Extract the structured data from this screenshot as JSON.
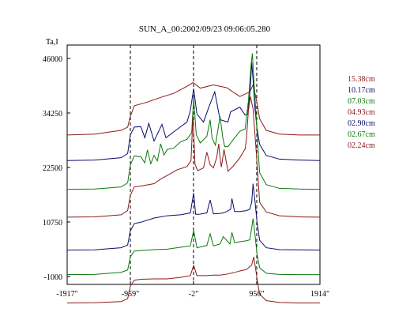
{
  "chart_data": {
    "type": "line",
    "title": "SUN_A_00:2002/09/23 09:06:05.280",
    "ylabel": "Ta,I",
    "xlabel": "",
    "xlim": [
      -1917,
      1914
    ],
    "ylim": [
      -1000,
      46000
    ],
    "yticks": [
      {
        "value": 46000,
        "label": "46000"
      },
      {
        "value": 34250,
        "label": "34250"
      },
      {
        "value": 22500,
        "label": "22500"
      },
      {
        "value": 10750,
        "label": "10750"
      },
      {
        "value": -1000,
        "label": "-1000"
      }
    ],
    "xticks": [
      {
        "value": -1917,
        "label": "-1917\""
      },
      {
        "value": -959,
        "label": "-959\""
      },
      {
        "value": -2,
        "label": "-2\""
      },
      {
        "value": 956,
        "label": "956\""
      },
      {
        "value": 1914,
        "label": "1914\""
      }
    ],
    "vlines": [
      -959,
      -2,
      956
    ],
    "grid": false,
    "legend_position": "right",
    "series": [
      {
        "name": "15.38cm",
        "color": "#8b1a1a",
        "x": [
          -1917,
          -1500,
          -1100,
          -1000,
          -960,
          -900,
          -700,
          -500,
          -300,
          -100,
          -10,
          100,
          300,
          500,
          700,
          850,
          900,
          950,
          1000,
          1100,
          1300,
          1600,
          1914
        ],
        "y": [
          29500,
          29700,
          30500,
          31200,
          33500,
          35800,
          36600,
          37600,
          38500,
          40000,
          40800,
          39600,
          40300,
          39700,
          37800,
          38800,
          40300,
          37200,
          33000,
          30500,
          29700,
          29500,
          29500
        ]
      },
      {
        "name": "10.17cm",
        "color": "#0b0b6e",
        "x": [
          -1917,
          -1500,
          -1100,
          -1000,
          -960,
          -900,
          -800,
          -740,
          -680,
          -600,
          -480,
          -420,
          -300,
          -100,
          -50,
          0,
          50,
          150,
          230,
          320,
          400,
          520,
          560,
          700,
          780,
          820,
          860,
          880,
          900,
          930,
          960,
          1000,
          1100,
          1300,
          1600,
          1914
        ],
        "y": [
          24000,
          24100,
          24600,
          25500,
          29500,
          31200,
          31300,
          28900,
          32000,
          28200,
          31800,
          28900,
          30200,
          32300,
          34800,
          39500,
          34000,
          32300,
          35500,
          38800,
          32800,
          32300,
          34500,
          35500,
          33800,
          34000,
          39800,
          45200,
          41500,
          35000,
          31000,
          27500,
          25100,
          24300,
          24100,
          24000
        ]
      },
      {
        "name": "07.03cm",
        "color": "#0b7a0b",
        "x": [
          -1917,
          -1500,
          -1100,
          -1000,
          -960,
          -900,
          -800,
          -740,
          -700,
          -650,
          -600,
          -550,
          -500,
          -450,
          -400,
          -300,
          -200,
          -100,
          -30,
          0,
          40,
          100,
          200,
          250,
          280,
          330,
          400,
          440,
          470,
          520,
          600,
          700,
          780,
          830,
          870,
          890,
          910,
          940,
          970,
          1000,
          1100,
          1300,
          1600,
          1914
        ],
        "y": [
          17800,
          17850,
          18300,
          19200,
          23000,
          25000,
          24800,
          23500,
          26300,
          23300,
          25100,
          23900,
          27600,
          25200,
          26400,
          26700,
          28000,
          28600,
          30000,
          37500,
          29500,
          27800,
          29200,
          32800,
          28800,
          27300,
          33500,
          29100,
          27000,
          27000,
          28500,
          30300,
          30800,
          36900,
          44600,
          47100,
          42000,
          35200,
          27700,
          21400,
          18800,
          18000,
          17850,
          17800
        ]
      },
      {
        "name": "04.93cm",
        "color": "#8b1a1a",
        "x": [
          -1917,
          -1500,
          -1100,
          -1000,
          -960,
          -900,
          -800,
          -600,
          -500,
          -350,
          -250,
          -100,
          -40,
          -10,
          20,
          60,
          150,
          200,
          250,
          300,
          350,
          380,
          400,
          420,
          460,
          520,
          600,
          700,
          780,
          800,
          830,
          860,
          900,
          940,
          975,
          1000,
          1100,
          1300,
          1600,
          1914
        ],
        "y": [
          11800,
          11850,
          12300,
          13200,
          16500,
          18300,
          18500,
          19000,
          20000,
          21200,
          22000,
          22700,
          24000,
          33800,
          23200,
          21800,
          22400,
          25800,
          23100,
          22400,
          24700,
          27600,
          24600,
          22600,
          26400,
          21700,
          22800,
          24600,
          26500,
          28700,
          34800,
          37800,
          35200,
          27500,
          20400,
          15000,
          12900,
          12100,
          11850,
          11800
        ]
      },
      {
        "name": "02.90cm",
        "color": "#0b0b6e",
        "x": [
          -1917,
          -1500,
          -1100,
          -1000,
          -960,
          -900,
          -800,
          -600,
          -400,
          -200,
          -50,
          0,
          30,
          80,
          200,
          250,
          300,
          400,
          450,
          500,
          560,
          580,
          620,
          700,
          800,
          850,
          880,
          900,
          930,
          960,
          1000,
          1100,
          1300,
          1600,
          1914
        ],
        "y": [
          4700,
          4750,
          5200,
          5800,
          8800,
          10400,
          10700,
          11600,
          12100,
          12300,
          12700,
          17000,
          12400,
          12400,
          12700,
          15500,
          12500,
          12600,
          12700,
          13000,
          13500,
          15800,
          13000,
          13000,
          13200,
          13500,
          15000,
          19000,
          15200,
          10800,
          6800,
          5200,
          4800,
          4750,
          4700
        ]
      },
      {
        "name": "02.67cm",
        "color": "#0b7a0b",
        "x": [
          -1917,
          -1500,
          -1100,
          -1000,
          -960,
          -900,
          -800,
          -600,
          -400,
          -200,
          -50,
          0,
          50,
          200,
          250,
          300,
          400,
          450,
          550,
          580,
          620,
          700,
          800,
          850,
          880,
          900,
          930,
          960,
          1000,
          1100,
          1300,
          1600,
          1914
        ],
        "y": [
          -600,
          -550,
          -100,
          400,
          3200,
          4500,
          4600,
          4800,
          4900,
          5300,
          5600,
          8900,
          5200,
          5700,
          8200,
          5600,
          6000,
          7600,
          6000,
          8500,
          6300,
          6500,
          6700,
          6900,
          9500,
          11500,
          8000,
          3800,
          900,
          -300,
          -550,
          -600,
          -600
        ]
      },
      {
        "name": "02.24cm",
        "color": "#8b1a1a",
        "x": [
          -1917,
          -1500,
          -1100,
          -1000,
          -960,
          -900,
          -800,
          -600,
          -400,
          -200,
          -50,
          0,
          50,
          200,
          300,
          400,
          500,
          600,
          700,
          800,
          880,
          910,
          940,
          970,
          1000,
          1100,
          1300,
          1600,
          1914
        ],
        "y": [
          -6700,
          -6650,
          -6400,
          -5800,
          -3100,
          -1800,
          -1600,
          -1500,
          -1500,
          -1200,
          -800,
          1400,
          -800,
          -800,
          -700,
          -700,
          -500,
          -200,
          200,
          500,
          1500,
          3200,
          600,
          -2400,
          -4800,
          -6200,
          -6600,
          -6700,
          -6700
        ]
      }
    ]
  }
}
